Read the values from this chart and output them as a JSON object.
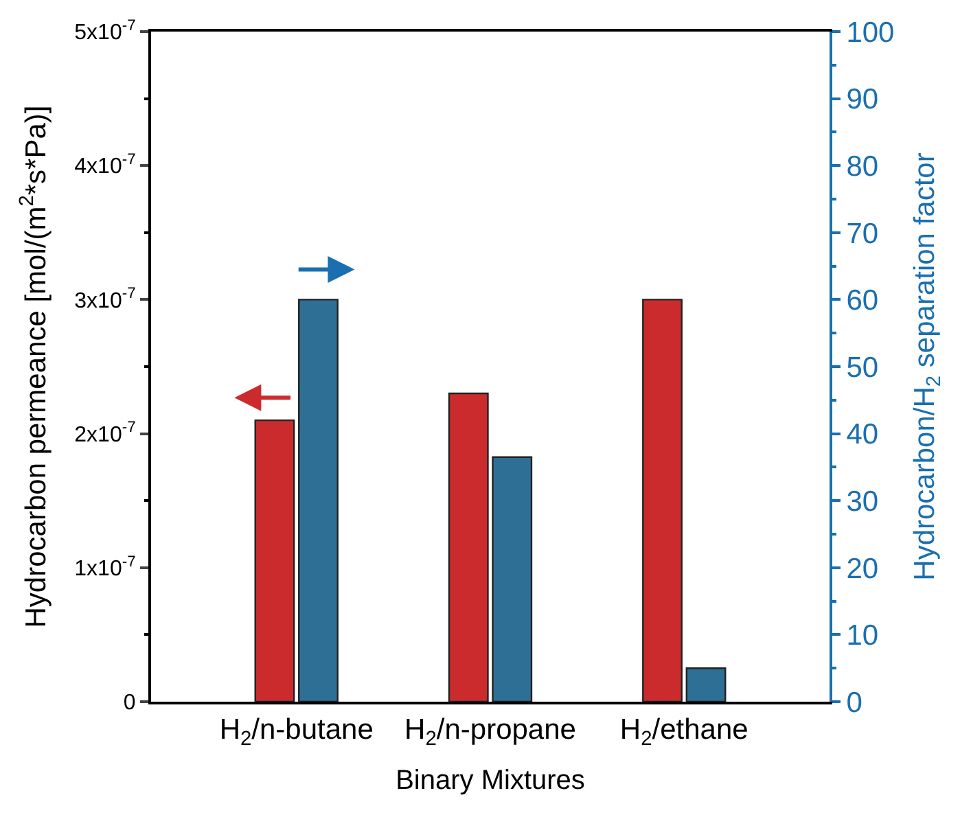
{
  "chart_data": {
    "type": "bar",
    "categories": [
      "H$_{2}$/n-butane",
      "H$_{2}$/n-propane",
      "H$_{2}$/ethane"
    ],
    "series": [
      {
        "color": "#cc2b2e",
        "values": [
          2.1e-07,
          2.3e-07,
          3e-07
        ]
      },
      {
        "color": "#2e6f96",
        "values": [
          60,
          36.5,
          5
        ],
        "axis": "y2"
      }
    ],
    "xlabel": "Binary Mixtures",
    "ylabel": "Hydrocarbon permeance [mol/(m$^{2}$*s*Pa)]",
    "y2label": "Hydrocarbon/H$_{2}$ separation factor",
    "ylim": [
      0,
      5e-07
    ],
    "yticks": [
      0,
      {
        "value": 1e-07,
        "label": "1x10$^{-7}$"
      },
      {
        "value": 2e-07,
        "label": "2x10$^{-7}$"
      },
      {
        "value": 3e-07,
        "label": "3x10$^{-7}$"
      },
      {
        "value": 4e-07,
        "label": "4x10$^{-7}$"
      },
      {
        "value": 5e-07,
        "label": "5x10$^{-7}$"
      }
    ],
    "y2lim": [
      0,
      100
    ],
    "y2ticks": [
      0,
      10,
      20,
      30,
      40,
      50,
      60,
      70,
      80,
      90,
      100
    ]
  }
}
